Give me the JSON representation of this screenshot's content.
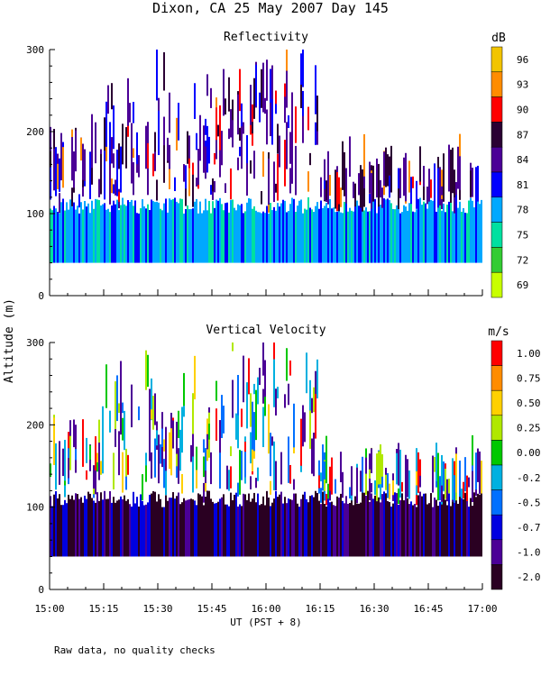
{
  "title": "Dixon, CA 25 May 2007  Day 145",
  "footnote": "Raw data, no quality checks",
  "colors": {
    "foreground": "#000000",
    "background": "#ffffff"
  },
  "chart_data": [
    {
      "type": "heatmap",
      "title": "Reflectivity",
      "ylabel": "Altitude (m)",
      "xlabel": "UT  (PST + 8)",
      "x_range": [
        "15:00",
        "17:00"
      ],
      "y_range": [
        0,
        300
      ],
      "x_ticks": [
        "15:00",
        "15:15",
        "15:30",
        "15:45",
        "16:00",
        "16:15",
        "16:30",
        "16:45",
        "17:00"
      ],
      "y_ticks": [
        "0",
        "100",
        "200",
        "300"
      ],
      "colorbar": {
        "unit": "dB",
        "labels": [
          "96",
          "93",
          "90",
          "87",
          "84",
          "81",
          "78",
          "75",
          "72",
          "69"
        ],
        "colors": [
          "#f2c400",
          "#ff8c00",
          "#ff0000",
          "#2a0033",
          "#4b0096",
          "#0000ff",
          "#00a8ff",
          "#00e0a0",
          "#33cc33",
          "#c8ff00"
        ]
      },
      "data_region": {
        "altitude_bottom_m": 40,
        "dense_top_m": 100,
        "max_echo_m": 300
      }
    },
    {
      "type": "heatmap",
      "title": "Vertical Velocity",
      "ylabel": "Altitude (m)",
      "xlabel": "UT  (PST + 8)",
      "x_range": [
        "15:00",
        "17:00"
      ],
      "y_range": [
        0,
        300
      ],
      "x_ticks": [
        "15:00",
        "15:15",
        "15:30",
        "15:45",
        "16:00",
        "16:15",
        "16:30",
        "16:45",
        "17:00"
      ],
      "y_ticks": [
        "0",
        "100",
        "200",
        "300"
      ],
      "colorbar": {
        "unit": "m/s",
        "labels": [
          "1.00",
          "0.75",
          "0.50",
          "0.25",
          "0.00",
          "-0.25",
          "-0.50",
          "-0.75",
          "-1.00",
          "-2.00"
        ],
        "colors": [
          "#ff0000",
          "#ff8c00",
          "#ffd000",
          "#b0e800",
          "#00c800",
          "#00b0e0",
          "#0070ff",
          "#0000e0",
          "#4b0096",
          "#2a0022"
        ]
      },
      "data_region": {
        "altitude_bottom_m": 40,
        "dense_top_m": 100,
        "max_echo_m": 300
      }
    }
  ]
}
